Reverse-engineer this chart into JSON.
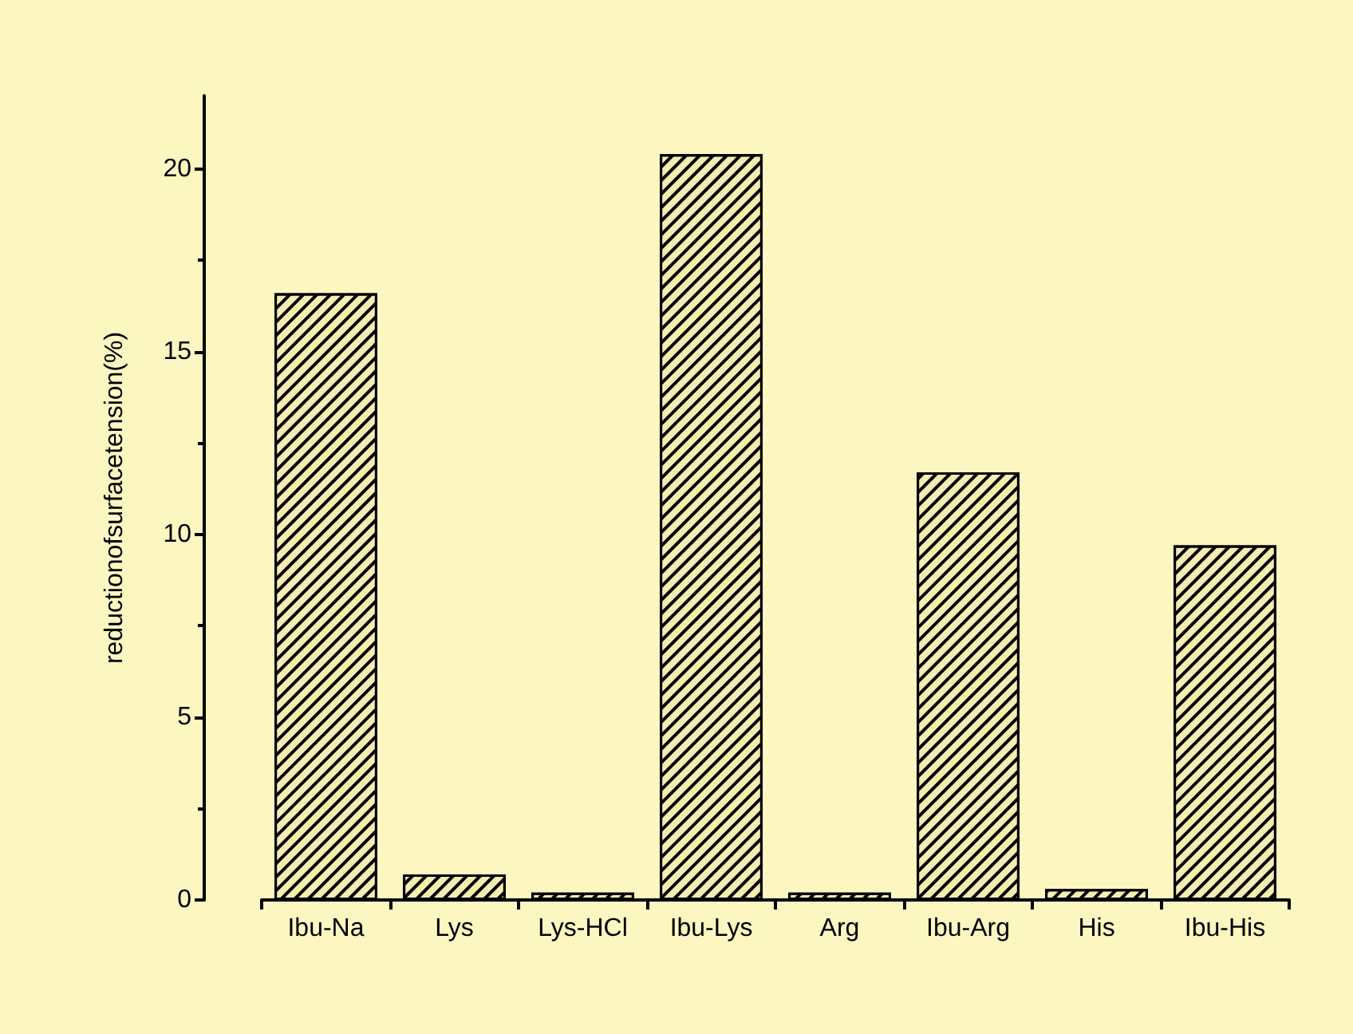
{
  "chart_data": {
    "type": "bar",
    "ylabel": "reductionofsurfacetension(%)",
    "categories": [
      "Ibu-Na",
      "Lys",
      "Lys-HCl",
      "Ibu-Lys",
      "Arg",
      "Ibu-Arg",
      "His",
      "Ibu-His"
    ],
    "values": [
      16.6,
      0.7,
      0.2,
      20.4,
      0.2,
      11.7,
      0.3,
      9.7
    ],
    "color": "#f5ecb0",
    "ylim": [
      0,
      22
    ],
    "yticks": [
      0,
      5,
      10,
      15,
      20
    ],
    "grid": false
  }
}
